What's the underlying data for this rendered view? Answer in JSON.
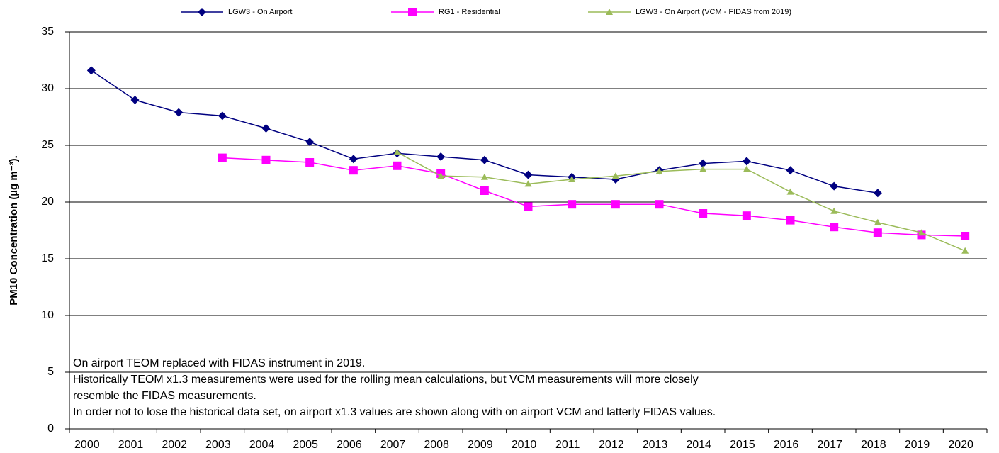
{
  "chart_data": {
    "type": "line",
    "y_label": "PM10 Concentration (µg m⁻³).",
    "categories": [
      "2000",
      "2001",
      "2002",
      "2003",
      "2004",
      "2005",
      "2006",
      "2007",
      "2008",
      "2009",
      "2010",
      "2011",
      "2012",
      "2013",
      "2014",
      "2015",
      "2016",
      "2017",
      "2018",
      "2019",
      "2020"
    ],
    "series": [
      {
        "name": "LGW3 - On Airport",
        "color": "#000080",
        "marker": "diamond",
        "values": [
          31.6,
          29.0,
          27.9,
          27.6,
          26.5,
          25.3,
          23.8,
          24.3,
          24.0,
          23.7,
          22.4,
          22.2,
          22.0,
          22.8,
          23.4,
          23.6,
          22.8,
          21.4,
          20.8,
          null,
          null
        ]
      },
      {
        "name": "RG1 - Residential",
        "color": "#ff00ff",
        "marker": "square",
        "values": [
          null,
          null,
          null,
          23.9,
          23.7,
          23.5,
          22.8,
          23.2,
          22.5,
          21.0,
          19.6,
          19.8,
          19.8,
          19.8,
          19.0,
          18.8,
          18.4,
          17.8,
          17.3,
          17.1,
          17.0
        ]
      },
      {
        "name": "LGW3 - On Airport (VCM - FIDAS from 2019)",
        "color": "#9bbb59",
        "marker": "triangle",
        "values": [
          null,
          null,
          null,
          null,
          null,
          null,
          null,
          24.4,
          22.3,
          22.2,
          21.6,
          22.0,
          22.3,
          22.7,
          22.9,
          22.9,
          20.9,
          19.2,
          18.2,
          17.3,
          15.7
        ]
      }
    ],
    "ylim": [
      0,
      35
    ],
    "yticks": [
      0,
      5,
      10,
      15,
      20,
      25,
      30,
      35
    ],
    "grid": true,
    "annotations": [
      "On airport TEOM replaced with FIDAS instrument in 2019.",
      "Historically TEOM x1.3 measurements were used for the rolling mean calculations, but VCM measurements will more closely",
      "resemble the FIDAS measurements.",
      "In order not to lose the historical data set, on airport x1.3 values are shown along with on airport VCM and latterly FIDAS values."
    ]
  }
}
